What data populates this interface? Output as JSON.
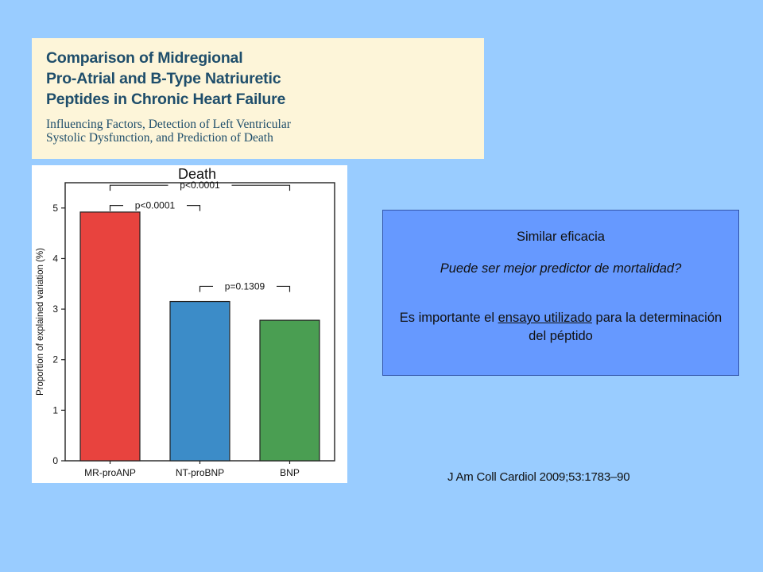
{
  "article": {
    "title_lines": [
      "Comparison of Midregional",
      "Pro-Atrial and B-Type Natriuretic",
      "Peptides in Chronic Heart Failure"
    ],
    "subtitle_lines": [
      "Influencing Factors, Detection of Left Ventricular",
      "Systolic Dysfunction, and Prediction of Death"
    ]
  },
  "info_box": {
    "line1": "Similar eficacia",
    "line2": "Puede ser mejor predictor de mortalidad?",
    "line3_pre": "Es importante el ",
    "line3_underlined": "ensayo utilizado",
    "line3_post": " para la determinación del péptido"
  },
  "citation": "J Am Coll Cardiol 2009;53:1783–90",
  "chart_data": {
    "type": "bar",
    "title": "Death",
    "ylabel": "Proportion of explained variation (%)",
    "xlabel": "",
    "categories": [
      "MR-proANP",
      "NT-proBNP",
      "BNP"
    ],
    "values": [
      4.92,
      3.15,
      2.78
    ],
    "colors": [
      "#e8433e",
      "#3c8cc8",
      "#4a9e52"
    ],
    "ylim": [
      0,
      5.5
    ],
    "yticks": [
      0,
      1,
      2,
      3,
      4,
      5
    ],
    "grid": false,
    "comparisons": [
      {
        "from": 0,
        "to": 2,
        "label": "p<0.0001"
      },
      {
        "from": 0,
        "to": 1,
        "label": "p<0.0001"
      },
      {
        "from": 1,
        "to": 2,
        "label": "p=0.1309"
      }
    ]
  }
}
